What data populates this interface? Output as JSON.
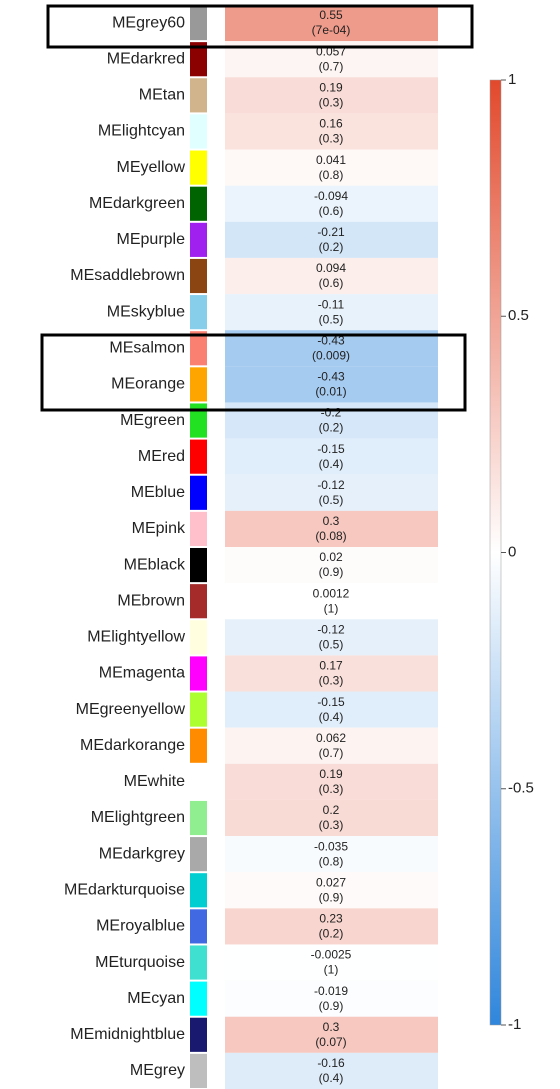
{
  "chart_data": {
    "type": "heatmap",
    "categories": [
      "MEgrey60",
      "MEdarkred",
      "MEtan",
      "MElightcyan",
      "MEyellow",
      "MEdarkgreen",
      "MEpurple",
      "MEsaddlebrown",
      "MEskyblue",
      "MEsalmon",
      "MEorange",
      "MEgreen",
      "MEred",
      "MEblue",
      "MEpink",
      "MEblack",
      "MEbrown",
      "MElightyellow",
      "MEmagenta",
      "MEgreenyellow",
      "MEdarkorange",
      "MEwhite",
      "MElightgreen",
      "MEdarkgrey",
      "MEdarkturquoise",
      "MEroyalblue",
      "MEturquoise",
      "MEcyan",
      "MEmidnightblue",
      "MEgrey"
    ],
    "colors": [
      "#999999",
      "#8b0000",
      "#d2b48c",
      "#e0ffff",
      "#ffff00",
      "#006400",
      "#a020f0",
      "#8b4513",
      "#87ceeb",
      "#fa8072",
      "#ffa500",
      "#22e022",
      "#ff0000",
      "#0000ff",
      "#ffc0cb",
      "#000000",
      "#a52a2a",
      "#ffffe0",
      "#ff00ff",
      "#adff2f",
      "#ff8c00",
      "#ffffff",
      "#90ee90",
      "#a9a9a9",
      "#00ced1",
      "#4169e1",
      "#40e0d0",
      "#00ffff",
      "#191970",
      "#bebebe"
    ],
    "values": [
      0.55,
      0.057,
      0.19,
      0.16,
      0.041,
      -0.094,
      -0.21,
      0.094,
      -0.11,
      -0.43,
      -0.43,
      -0.2,
      -0.15,
      -0.12,
      0.3,
      0.02,
      0.0012,
      -0.12,
      0.17,
      -0.15,
      0.062,
      0.19,
      0.2,
      -0.035,
      0.027,
      0.23,
      -0.0025,
      -0.019,
      0.3,
      -0.16
    ],
    "pvalue_labels": [
      "(7e-04)",
      "(0.7)",
      "(0.3)",
      "(0.3)",
      "(0.8)",
      "(0.6)",
      "(0.2)",
      "(0.6)",
      "(0.5)",
      "(0.009)",
      "(0.01)",
      "(0.2)",
      "(0.4)",
      "(0.5)",
      "(0.08)",
      "(0.9)",
      "(1)",
      "(0.5)",
      "(0.3)",
      "(0.4)",
      "(0.7)",
      "(0.3)",
      "(0.3)",
      "(0.8)",
      "(0.9)",
      "(0.2)",
      "(1)",
      "(0.9)",
      "(0.07)",
      "(0.4)"
    ],
    "colormap": {
      "low": "#2f86dc",
      "mid": "#ffffff",
      "high": "#e2492c"
    },
    "ylim": [
      -1,
      1
    ],
    "yticks": [
      -1,
      -0.5,
      0,
      0.5,
      1
    ]
  }
}
